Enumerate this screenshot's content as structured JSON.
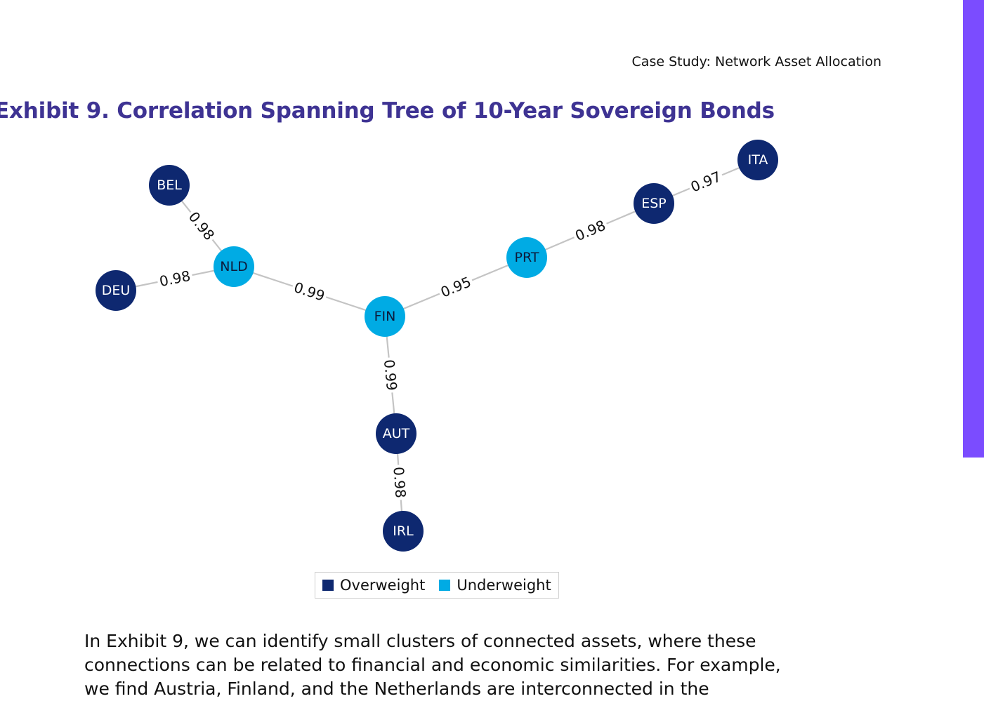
{
  "header": {
    "running_title": "Case Study: Network Asset Allocation"
  },
  "exhibit": {
    "title": "Exhibit 9. Correlation Spanning Tree of 10-Year Sovereign Bonds"
  },
  "colors": {
    "title": "#3e3393",
    "accent_bar": "#7b4cff",
    "overweight": "#0e2870",
    "underweight": "#00abe4",
    "edge": "#c4c4c4",
    "overweight_label": "#ffffff",
    "underweight_label": "#0d1a3a"
  },
  "legend": {
    "items": [
      {
        "key": "overweight",
        "label": "Overweight"
      },
      {
        "key": "underweight",
        "label": "Underweight"
      }
    ]
  },
  "network": {
    "nodes": [
      {
        "id": "BEL",
        "group": "overweight"
      },
      {
        "id": "DEU",
        "group": "overweight"
      },
      {
        "id": "NLD",
        "group": "underweight"
      },
      {
        "id": "FIN",
        "group": "underweight"
      },
      {
        "id": "AUT",
        "group": "overweight"
      },
      {
        "id": "IRL",
        "group": "overweight"
      },
      {
        "id": "PRT",
        "group": "underweight"
      },
      {
        "id": "ESP",
        "group": "overweight"
      },
      {
        "id": "ITA",
        "group": "overweight"
      }
    ],
    "edges": [
      {
        "source": "BEL",
        "target": "NLD",
        "weight": "0.98"
      },
      {
        "source": "DEU",
        "target": "NLD",
        "weight": "0.98"
      },
      {
        "source": "NLD",
        "target": "FIN",
        "weight": "0.99"
      },
      {
        "source": "FIN",
        "target": "PRT",
        "weight": "0.95"
      },
      {
        "source": "PRT",
        "target": "ESP",
        "weight": "0.98"
      },
      {
        "source": "ESP",
        "target": "ITA",
        "weight": "0.97"
      },
      {
        "source": "FIN",
        "target": "AUT",
        "weight": "0.99"
      },
      {
        "source": "AUT",
        "target": "IRL",
        "weight": "0.98"
      }
    ]
  },
  "body": {
    "paragraph": "In Exhibit 9, we can identify small clusters of connected assets, where these connections can be related to financial and economic similarities. For example, we find Austria, Finland, and the Netherlands are interconnected in the"
  }
}
